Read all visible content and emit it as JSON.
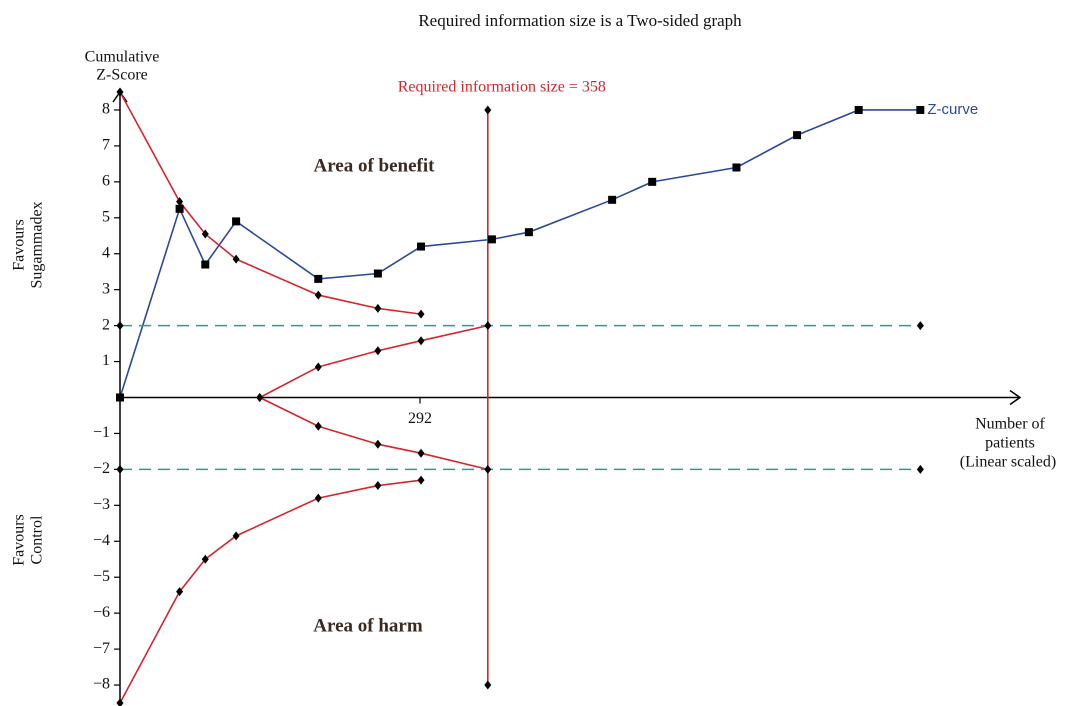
{
  "chart_data": {
    "type": "line",
    "title": "Required information size is a Two-sided graph",
    "y_label": [
      "Cumulative",
      "Z-Score"
    ],
    "x_label": [
      "Number of",
      "patients",
      "(Linear scaled)"
    ],
    "annotations": {
      "benefit": "Area of benefit",
      "harm": "Area of harm",
      "favours_top": [
        "Favours",
        "Sugammadex"
      ],
      "favours_bottom": [
        "Favours",
        "Control"
      ]
    },
    "ris": {
      "label": "Required information size = 358",
      "value": 358,
      "color": "#d9252a"
    },
    "xlim": [
      0,
      876
    ],
    "ylim": [
      -8.5,
      8.5
    ],
    "xticks": [
      292
    ],
    "yticks": [
      {
        "value": -8,
        "label": "−8"
      },
      {
        "value": -7,
        "label": "−7"
      },
      {
        "value": -6,
        "label": "−6"
      },
      {
        "value": -5,
        "label": "−5"
      },
      {
        "value": -4,
        "label": "−4"
      },
      {
        "value": -3,
        "label": "−3"
      },
      {
        "value": -2,
        "label": "−2"
      },
      {
        "value": -1,
        "label": "−1"
      },
      1,
      2,
      3,
      4,
      5,
      6,
      7,
      8
    ],
    "series": [
      {
        "name": "Z-curve",
        "color": "#2b4a9a",
        "marker": "square",
        "x": [
          0,
          58,
          83,
          113,
          193,
          251,
          293,
          362,
          398,
          479,
          518,
          600,
          659,
          719,
          779
        ],
        "values": [
          0,
          5.25,
          3.7,
          4.9,
          3.3,
          3.45,
          4.2,
          4.4,
          4.6,
          5.5,
          6.0,
          6.4,
          7.3,
          8.0,
          8.0
        ]
      },
      {
        "color": "#d9252a",
        "marker": "diamond",
        "x": [
          0,
          58,
          83,
          113,
          193,
          251,
          293
        ],
        "values": [
          8.5,
          5.45,
          4.55,
          3.85,
          2.85,
          2.48,
          2.32
        ]
      },
      {
        "color": "#d9252a",
        "marker": "diamond",
        "x": [
          0,
          58,
          83,
          113,
          193,
          251,
          293
        ],
        "values": [
          -8.5,
          -5.4,
          -4.5,
          -3.85,
          -2.8,
          -2.45,
          -2.3
        ]
      },
      {
        "color": "#d9252a",
        "marker": "diamond",
        "x": [
          136,
          193,
          251,
          293,
          358
        ],
        "values": [
          0,
          0.85,
          1.3,
          1.58,
          2.0
        ]
      },
      {
        "color": "#d9252a",
        "marker": "diamond",
        "x": [
          136,
          193,
          251,
          293,
          358
        ],
        "values": [
          0,
          -0.8,
          -1.3,
          -1.55,
          -2.0
        ]
      },
      {
        "color": "#d9252a",
        "marker": "diamond",
        "x": [
          358,
          358
        ],
        "values": [
          8,
          -8
        ]
      },
      {
        "color": "#2a9d9a",
        "marker": "diamond",
        "dashed": true,
        "x": [
          0,
          779
        ],
        "values": [
          2,
          2
        ]
      },
      {
        "color": "#2a9d9a",
        "marker": "diamond",
        "dashed": true,
        "x": [
          0,
          779
        ],
        "values": [
          -2,
          -2
        ]
      }
    ]
  }
}
